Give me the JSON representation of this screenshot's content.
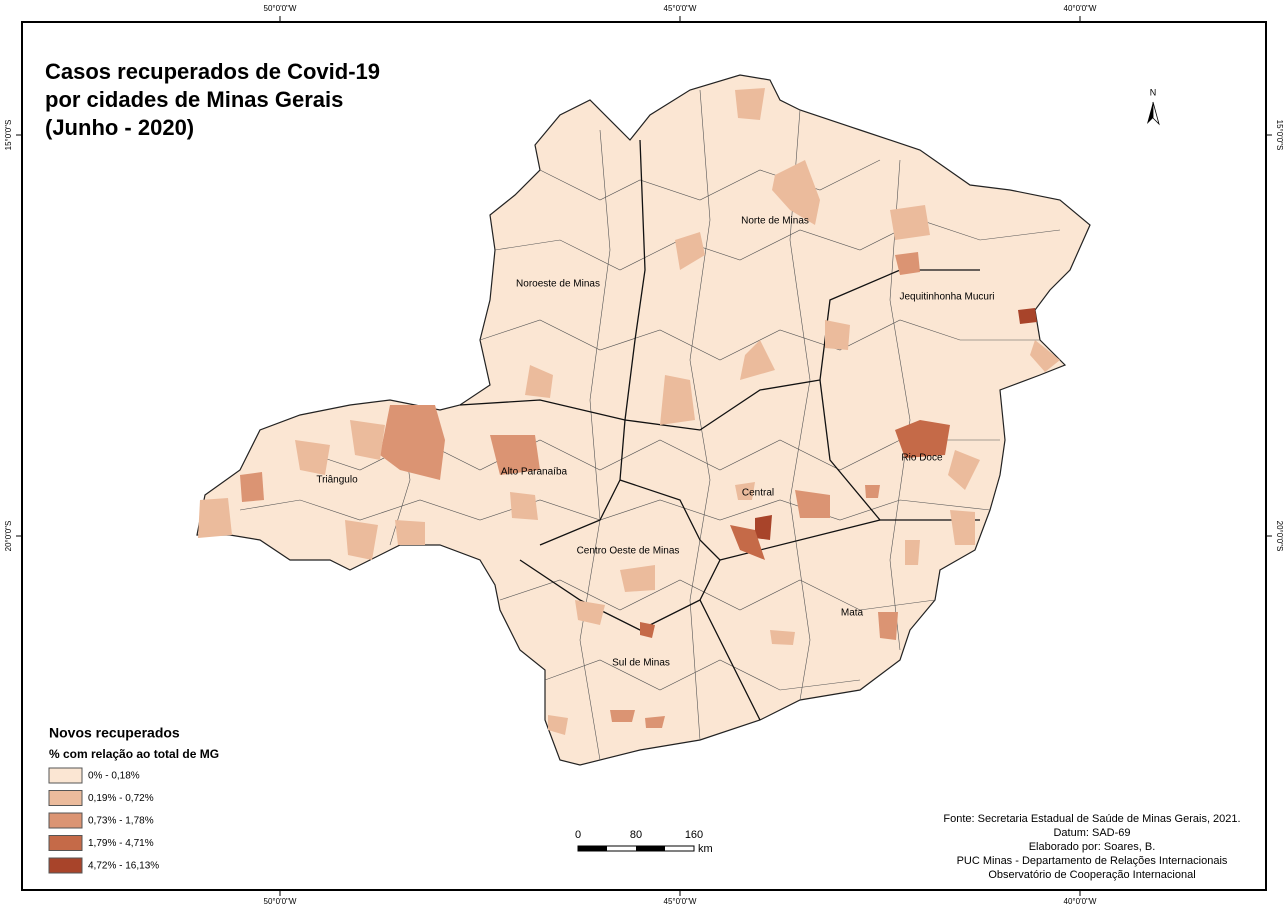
{
  "title": [
    "Casos recuperados de Covid-19",
    "por cidades de Minas Gerais",
    "(Junho - 2020)"
  ],
  "graticule": {
    "longitudes": [
      "50°0'0\"W",
      "45°0'0\"W",
      "40°0'0\"W"
    ],
    "latitudes": [
      "15°0'0\"S",
      "20°0'0\"S"
    ]
  },
  "north": "N",
  "regions": [
    "Norte de Minas",
    "Noroeste de Minas",
    "Jequitinhonha Mucuri",
    "Rio Doce",
    "Triângulo",
    "Alto Paranaíba",
    "Central",
    "Centro Oeste de Minas",
    "Mata",
    "Sul de Minas"
  ],
  "legend": {
    "title": "Novos recuperados",
    "subtitle": "% com relação ao total de MG",
    "classes": [
      {
        "label": "0% - 0,18%",
        "color": "#fbe6d3"
      },
      {
        "label": "0,19% - 0,72%",
        "color": "#ebbb9c"
      },
      {
        "label": "0,73% - 1,78%",
        "color": "#db9473"
      },
      {
        "label": "1,79% - 4,71%",
        "color": "#c56a48"
      },
      {
        "label": "4,72% - 16,13%",
        "color": "#a8442a"
      }
    ]
  },
  "scale_bar": {
    "ticks": [
      0,
      80,
      160
    ],
    "unit": "km"
  },
  "credits": [
    "Fonte: Secretaria Estadual de Saúde de Minas Gerais, 2021.",
    "Datum: SAD-69",
    "Elaborado por: Soares, B.",
    "PUC Minas - Departamento de Relações Internacionais",
    "Observatório de Cooperação Internacional"
  ]
}
